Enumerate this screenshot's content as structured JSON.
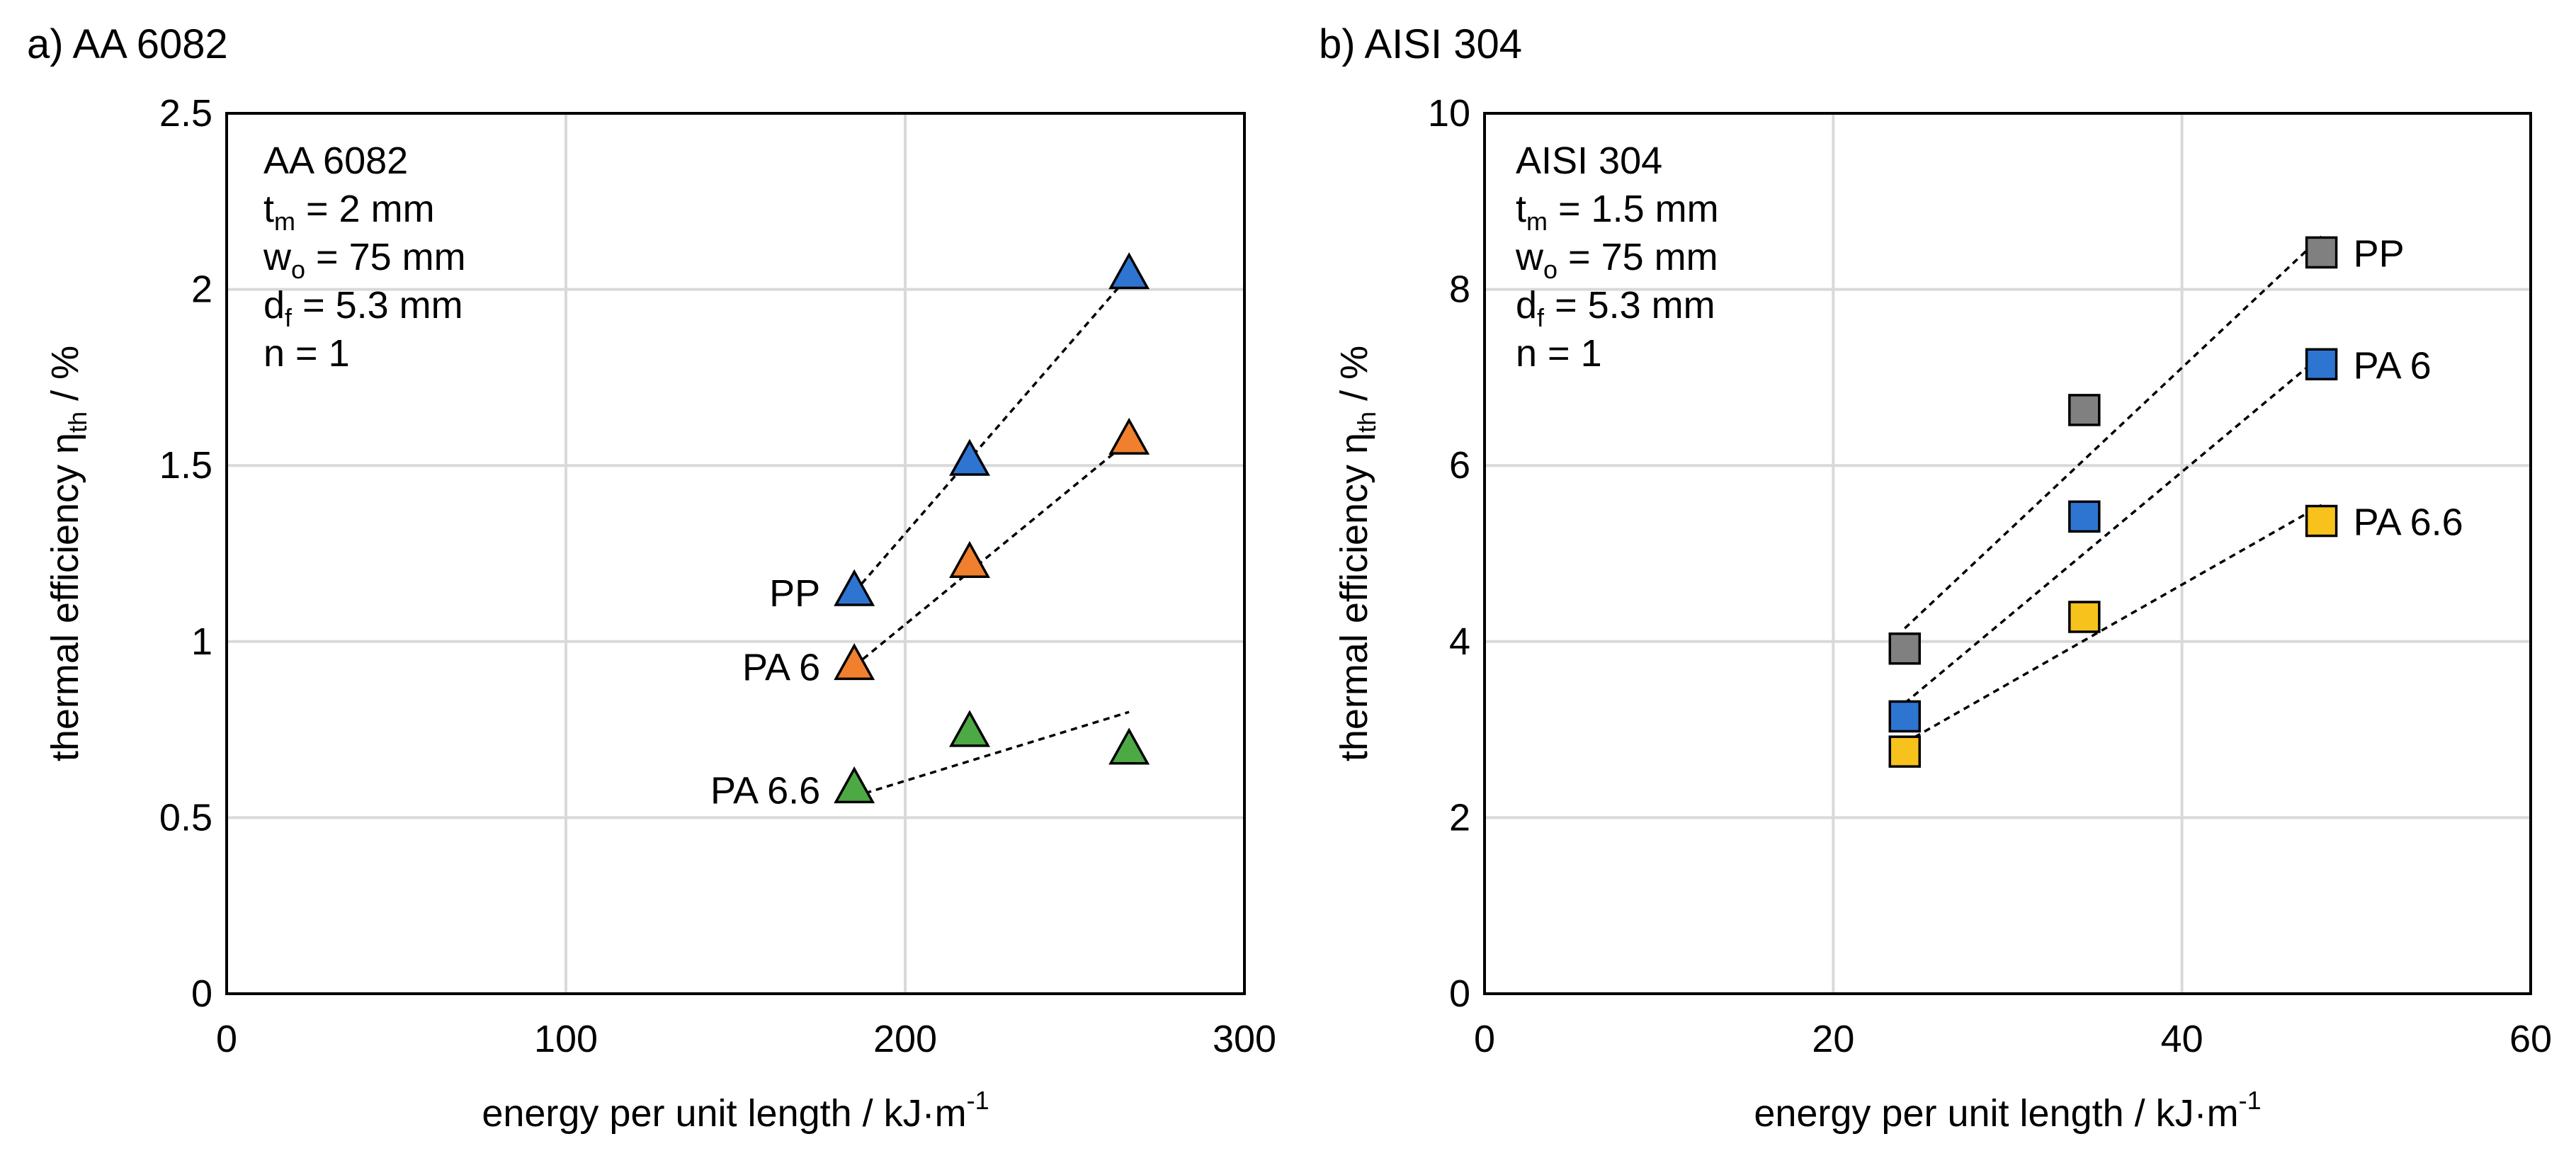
{
  "chart_data": [
    {
      "type": "scatter",
      "panel_label": "a) AA 6082",
      "xlabel": "energy per unit length / kJ·m",
      "xlabel_sup": "-1",
      "ylabel": "thermal efficiency η",
      "ylabel_sub": "th",
      "ylabel_suffix": " / %",
      "xlim": [
        0,
        300
      ],
      "ylim": [
        0,
        2.5
      ],
      "xticks": [
        0,
        100,
        200,
        300
      ],
      "xtick_labels": [
        "0",
        "100",
        "200",
        "300"
      ],
      "yticks": [
        0,
        0.5,
        1,
        1.5,
        2,
        2.5
      ],
      "ytick_labels": [
        "0",
        "0.5",
        "1",
        "1.5",
        "2",
        "2.5"
      ],
      "grid": true,
      "marker": "triangle",
      "annotation": [
        {
          "main": "AA 6082",
          "sub": "",
          "rest": ""
        },
        {
          "main": "t",
          "sub": "m",
          "rest": " = 2 mm"
        },
        {
          "main": "w",
          "sub": "o",
          "rest": " = 75 mm"
        },
        {
          "main": "d",
          "sub": "f",
          "rest": " = 5.3 mm"
        },
        {
          "main": "n = 1",
          "sub": "",
          "rest": ""
        }
      ],
      "series": [
        {
          "name": "PP",
          "color": "#2E75D2",
          "x": [
            185,
            219,
            266
          ],
          "y": [
            1.14,
            1.51,
            2.04
          ],
          "trend": [
            [
              185,
              1.14
            ],
            [
              266,
              2.04
            ]
          ],
          "label_side": "left"
        },
        {
          "name": "PA 6",
          "color": "#F07F2E",
          "x": [
            185,
            219,
            266
          ],
          "y": [
            0.93,
            1.22,
            1.57
          ],
          "trend": [
            [
              185,
              0.93
            ],
            [
              266,
              1.57
            ]
          ],
          "label_side": "left"
        },
        {
          "name": "PA 6.6",
          "color": "#4CA944",
          "x": [
            185,
            219,
            266
          ],
          "y": [
            0.58,
            0.74,
            0.69
          ],
          "trend": [
            [
              185,
              0.56
            ],
            [
              266,
              0.8
            ]
          ],
          "label_side": "left"
        }
      ]
    },
    {
      "type": "scatter",
      "panel_label": "b) AISI 304",
      "xlabel": "energy per unit length / kJ·m",
      "xlabel_sup": "-1",
      "ylabel": "thermal efficiency η",
      "ylabel_sub": "th",
      "ylabel_suffix": " / %",
      "xlim": [
        0,
        60
      ],
      "ylim": [
        0,
        10
      ],
      "xticks": [
        0,
        20,
        40,
        60
      ],
      "xtick_labels": [
        "0",
        "20",
        "40",
        "60"
      ],
      "yticks": [
        0,
        2,
        4,
        6,
        8,
        10
      ],
      "ytick_labels": [
        "0",
        "2",
        "4",
        "6",
        "8",
        "10"
      ],
      "grid": true,
      "marker": "square",
      "annotation": [
        {
          "main": "AISI 304",
          "sub": "",
          "rest": ""
        },
        {
          "main": "t",
          "sub": "m",
          "rest": " = 1.5 mm"
        },
        {
          "main": "w",
          "sub": "o",
          "rest": " = 75 mm"
        },
        {
          "main": "d",
          "sub": "f",
          "rest": " = 5.3 mm"
        },
        {
          "main": "n = 1",
          "sub": "",
          "rest": ""
        }
      ],
      "series": [
        {
          "name": "PP",
          "color": "#808080",
          "x": [
            24.1,
            34.4,
            48.0
          ],
          "y": [
            3.92,
            6.63,
            8.42
          ],
          "trend": [
            [
              24.1,
              4.15
            ],
            [
              48.0,
              8.6
            ]
          ],
          "label_side": "right"
        },
        {
          "name": "PA 6",
          "color": "#2E75D2",
          "x": [
            24.1,
            34.4,
            48.0
          ],
          "y": [
            3.15,
            5.42,
            7.15
          ],
          "trend": [
            [
              24.1,
              3.3
            ],
            [
              48.0,
              7.25
            ]
          ],
          "label_side": "right"
        },
        {
          "name": "PA 6.6",
          "color": "#F7C21C",
          "x": [
            24.1,
            34.4,
            48.0
          ],
          "y": [
            2.75,
            4.28,
            5.37
          ],
          "trend": [
            [
              24.1,
              2.85
            ],
            [
              48.0,
              5.55
            ]
          ],
          "label_side": "right"
        }
      ]
    }
  ]
}
